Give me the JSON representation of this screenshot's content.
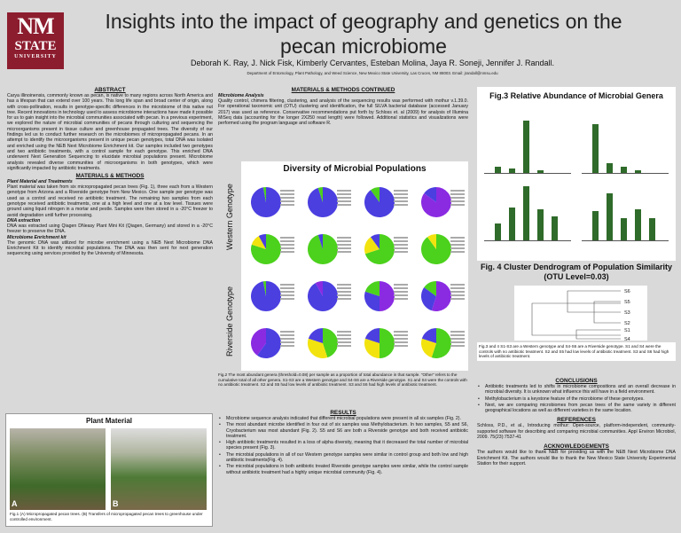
{
  "logo": {
    "line1": "NM",
    "line2": "STATE",
    "line3": "UNIVERSITY"
  },
  "title": "Insights into the impact of geography and genetics on the pecan microbiome",
  "authors": "Deborah K. Ray, J. Nick Fisk, Kimberly Cervantes, Esteban Molina, Jaya R. Soneji, Jennifer J. Randall.",
  "affiliation": "Department of Entomology, Plant Pathology, and Weed Science, New Mexico State University, Las Cruces, NM 88003. Email: jrandall@nmsu.edu",
  "abstract": {
    "heading": "ABSTRACT",
    "text": "Carya illinoinensis, commonly known as pecan, is native to many regions across North America and has a lifespan that can extend over 100 years. This long life span and broad center of origin, along with cross-pollination, results in genotype-specific differences in the microbiome of this native nut tree. Recent innovations in technology used to assess microbiome interactions have made it possible for us to gain insight into the microbial communities associated with pecan. In a previous experiment, we explored the nature of microbial communities of pecans through culturing and sequencing the microorganisms present in tissue culture and greenhouse propagated trees. The diversity of our findings led us to conduct further research on the microbiomes of micropropagated pecans. In an attempt to identify the microorganisms present in unique pecan genotypes, total DNA was isolated and enriched using the NEB Next Microbiome Enrichment kit. Our samples included two genotypes and two antibiotic treatments, with a control sample for each genotype. This enriched DNA underwent Next Generation Sequencing to elucidate microbial populations present. Microbiome analysis revealed diverse communities of microorganisms in both genotypes, which were significantly impacted by antibiotic treatments."
  },
  "methods": {
    "heading": "MATERIALS & METHODS",
    "sub1": "Plant Material and Treatments",
    "text1": "Plant material was taken from six micropropagated pecan trees (Fig. 1), three each from a Western genotype from Arizona and a Riverside genotype from New Mexico. One sample per genotype was used as a control and received no antibiotic treatment. The remaining two samples from each genotype received antibiotic treatments, one at a high level and one at a low level. Tissues were ground using liquid nitrogen in a mortar and pestle. Samples were then stored in a -20°C freezer to avoid degradation until further processing.",
    "sub2": "DNA extraction",
    "text2": "DNA was extracted using Qiagen DNeasy Plant Mini Kit (Qiagen, Germany) and stored in a -20°C freezer to preserve the DNA.",
    "sub3": "Microbiome Enrichment kit",
    "text3": "The genomic DNA was utilized for microbe enrichment using a NEB Next Microbiome DNA Enrichment Kit to identify microbial populations. The DNA was then sent for next generation sequencing using services provided by the University of Minnesota."
  },
  "plant": {
    "heading": "Plant Material",
    "label_a": "A",
    "label_b": "B",
    "caption": "Fig.1 (A) Micropropagated pecan trees. (B) Transfers of micropropagated pecan trees to greenhouse under controlled environment."
  },
  "methods_cont": {
    "heading": "MATERIALS & METHODS CONTINUED",
    "sub": "Microbiome Analysis",
    "text": "Quality control, chimera filtering, clustering, and analysis of the sequencing results was performed with mothur v.1.39.0. For operational taxonomic unit (OTU) clustering and identification, the full SILVA bacterial database (accessed January 2017) was used as reference. Conservative recommendations put forth by Schloss et. al (2009) for analysis of Illumina MiSeq data (accounting for the longer 2X250 read length) were followed. Additional statistics and visualizations were performed using the program language and software R."
  },
  "diversity": {
    "title": "Diversity of Microbial Populations",
    "western": "Western Genotype",
    "riverside": "Riverside Genotype",
    "caption": "Fig.2 The most abundant genera (threshold=0.08) per sample as a proportion of total abundance in that sample. \"Other\" refers to the cumulative total of all other genera. S1-S3 are a Western genotype and S4-S6 are a Riverside genotype. S1 and S4 were the controls with no antibiotic treatment. S2 and S5 had low levels of antibiotic treatment. S3 and S6 had high levels of antibiotic treatment."
  },
  "results": {
    "heading": "RESULTS",
    "items": [
      "Microbiome sequence analysis indicated that different microbial populations were present in all six samples (Fig. 2).",
      "The most abundant microbe identified in four out of six samples was Methylobacterium. In two samples, S5 and S6, Cryobacterium was most abundant (Fig. 2). S5 and S6 are both a Riverside genotype and both received antibiotic treatment.",
      "High antibiotic treatments resulted in a loss of alpha diversity, meaning that it decreased the total number of microbial species present (Fig. 3).",
      "The microbial populations in all of our Western genotype samples were similar in control group and both low and high antibiotic treatments(Fig. 4).",
      "The microbial populations in both antibiotic treated Riverside genotype samples were similar, while the control sample without antibiotic treatment had a highly unique microbial community (Fig. 4)."
    ]
  },
  "fig3": {
    "heading": "Fig.3 Relative Abundance of Microbial Genera"
  },
  "fig4": {
    "heading": "Fig. 4 Cluster Dendrogram of Population Similarity (OTU Level=0.03)",
    "labels": [
      "S6",
      "S5",
      "S3",
      "S2",
      "S1",
      "S4"
    ],
    "caption": "Fig.3 and 4 S1-S3 are a Western genotype and S4-S6 are a Riverside genotype. S1 and S4 were the controls with no antibiotic treatment. S2 and S5 had low levels of antibiotic treatment. S3 and S6 had high levels of antibiotic treatment."
  },
  "conclusions": {
    "heading": "CONCLUSIONS",
    "items": [
      "Antibiotic treatments led to shifts in microbiome compositions and an overall decrease in microbial diversity. It is unknown what influence this will have in a field environment.",
      "Methylobacterium is a keystone feature of the microbiome of these genotypes.",
      "Next, we are comparing microbiomes from pecan trees of the same variety in different geographical locations as well as different varieties in the same location."
    ]
  },
  "references": {
    "heading": "REFERENCES",
    "text": "Schloss, P.D., et al., Introducing mothur: Open-source, platform-independent, community-supported software for describing and comparing microbial communities. Appl Environ Microbiol, 2009. 75(23):7537-41"
  },
  "ack": {
    "heading": "ACKNOWLEDGEMENTS",
    "text": "The authors would like to thank NEB for providing us with the NEB Next Microbiome DNA Enrichment Kit. The authors would like to thank the New Mexico State University Experimental Station for their support."
  },
  "colors": {
    "nmsu_red": "#8c1d2f",
    "bar_green": "#2f6b2a",
    "pie_blue": "#4b3fe0",
    "pie_green": "#4cd11c",
    "pie_yellow": "#f2e30f",
    "pie_purple": "#8a2be2"
  }
}
